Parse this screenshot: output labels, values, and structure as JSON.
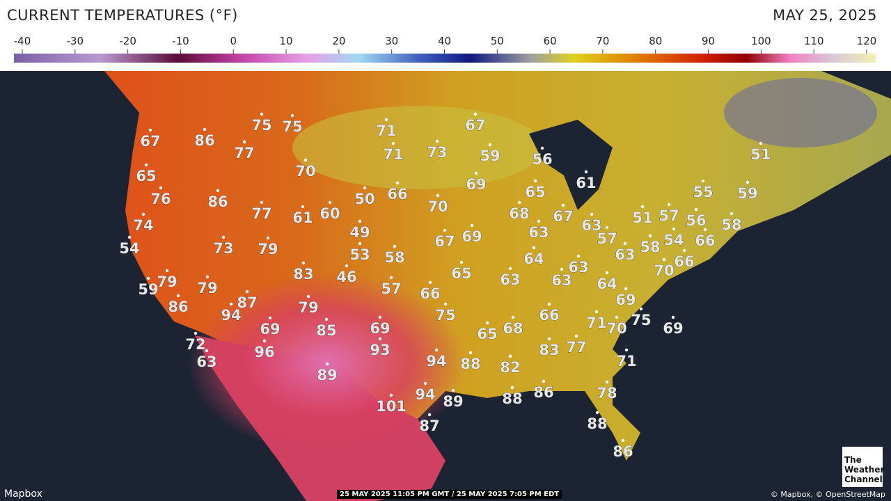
{
  "header": {
    "title": "CURRENT TEMPERATURES (°F)",
    "date": "MAY 25, 2025"
  },
  "legend": {
    "ticks": [
      -40,
      -30,
      -20,
      -10,
      0,
      10,
      20,
      30,
      40,
      50,
      60,
      70,
      80,
      90,
      100,
      110,
      120
    ]
  },
  "temperatures": [
    67,
    86,
    75,
    75,
    77,
    71,
    71,
    73,
    67,
    59,
    56,
    51,
    65,
    76,
    86,
    70,
    50,
    66,
    69,
    65,
    61,
    55,
    59,
    77,
    61,
    60,
    70,
    68,
    67,
    63,
    51,
    57,
    56,
    58,
    74,
    54,
    73,
    79,
    49,
    67,
    69,
    63,
    57,
    63,
    58,
    54,
    66,
    53,
    58,
    64,
    63,
    66,
    70,
    83,
    46,
    65,
    63,
    63,
    64,
    59,
    79,
    79,
    57,
    66,
    69,
    86,
    87,
    94,
    79,
    75,
    66,
    71,
    70,
    75,
    69,
    69,
    85,
    69,
    65,
    68,
    72,
    63,
    96,
    93,
    83,
    77,
    94,
    88,
    82,
    71,
    89,
    94,
    89,
    88,
    86,
    78,
    101,
    87,
    88,
    86
  ],
  "footer": {
    "attribution_left": "Mapbox",
    "timestamp": "25 MAY 2025 11:05 PM GMT / 25 MAY 2025 7:05 PM EDT",
    "attribution_right": "© Mapbox, © OpenStreetMap"
  },
  "logo": [
    "The",
    "Weather",
    "Channel"
  ]
}
